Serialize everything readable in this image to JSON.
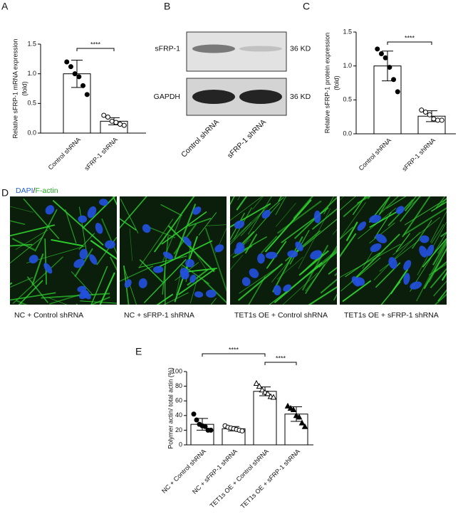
{
  "chart_data": [
    {
      "type": "bar",
      "label": "A",
      "ylabel": [
        "Relative sFRP-1 mRNA expression",
        "(fold)"
      ],
      "categories": [
        "Control shRNA",
        "sFRP-1 shRNA"
      ],
      "values": [
        1.0,
        0.2
      ],
      "errors": [
        0.23,
        0.06
      ],
      "points": [
        [
          1.2,
          1.12,
          1.0,
          0.95,
          0.8,
          0.65
        ],
        [
          0.3,
          0.27,
          0.2,
          0.18,
          0.15,
          0.13
        ]
      ],
      "markers": [
        "circle-filled",
        "circle-open"
      ],
      "color": "#ffffff",
      "ylim": [
        0,
        1.5
      ],
      "yticks": [
        {
          "value": 0,
          "label": "0.0"
        },
        0.5,
        {
          "value": 1,
          "label": "1.0"
        },
        1.5
      ],
      "comparisons": [
        {
          "groups": [
            0,
            1
          ],
          "label": "****"
        }
      ]
    },
    {
      "type": "bar",
      "label": "C",
      "ylabel": [
        "Relative  sFRP-1 protein expression",
        "(fold)"
      ],
      "categories": [
        "Control shRNA",
        "sFRP-1 shRNA"
      ],
      "values": [
        1.0,
        0.26
      ],
      "errors": [
        0.22,
        0.08
      ],
      "points": [
        [
          1.25,
          1.18,
          1.12,
          0.98,
          0.8,
          0.62
        ],
        [
          0.35,
          0.32,
          0.28,
          0.22,
          0.2,
          0.2
        ]
      ],
      "markers": [
        "circle-filled",
        "circle-open"
      ],
      "color": "#ffffff",
      "ylim": [
        0,
        1.5
      ],
      "yticks": [
        {
          "value": 0,
          "label": "0.0"
        },
        0.5,
        {
          "value": 1,
          "label": "1.0"
        },
        1.5
      ],
      "comparisons": [
        {
          "groups": [
            0,
            1
          ],
          "label": "****"
        }
      ]
    },
    {
      "type": "bar",
      "label": "E",
      "ylabel": [
        "Polymer actin/ total actin (%)"
      ],
      "categories": [
        "NC + Control shRNA",
        "NC + sFRP-1 shRNA",
        "TET1s OE + Control shRNA",
        "TET1s OE + sFRP-1 shRNA"
      ],
      "values": [
        28,
        22,
        73,
        42
      ],
      "errors": [
        8,
        3,
        6,
        10
      ],
      "points": [
        [
          42,
          34,
          28,
          26,
          25,
          20,
          20
        ],
        [
          26,
          24,
          23,
          22,
          21,
          20,
          19
        ],
        [
          84,
          80,
          75,
          72,
          70,
          66,
          65
        ],
        [
          53,
          50,
          48,
          40,
          38,
          30,
          25
        ]
      ],
      "markers": [
        "circle-filled",
        "circle-open",
        "triangle-open",
        "triangle-filled"
      ],
      "color": "#ffffff",
      "ylim": [
        0,
        100
      ],
      "yticks": [
        0,
        20,
        40,
        60,
        80,
        100
      ],
      "comparisons": [
        {
          "groups": [
            0,
            2
          ],
          "label": "****"
        },
        {
          "groups": [
            2,
            3
          ],
          "label": "****"
        }
      ]
    }
  ],
  "blot": {
    "label": "B",
    "rows": [
      {
        "name": "sFRP-1",
        "size": "36 KD"
      },
      {
        "name": "GAPDH",
        "size": "36 KD"
      }
    ],
    "lanes": [
      "Control shRNA",
      "sFRP-1 shRNA"
    ]
  },
  "imaging": {
    "label": "D",
    "stains": [
      {
        "name": "DAPI",
        "color": "#1f5fd0"
      },
      {
        "name": "F-actin",
        "color": "#1faa1f"
      }
    ],
    "stain_separator": "/",
    "panels": [
      "NC + Control shRNA",
      "NC + sFRP-1 shRNA",
      "TET1s OE + Control shRNA",
      "TET1s OE + sFRP-1 shRNA"
    ]
  }
}
